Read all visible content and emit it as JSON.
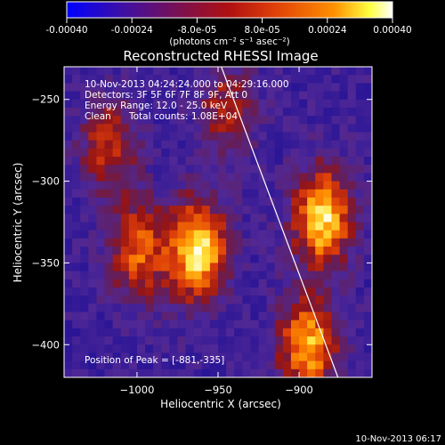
{
  "colorbar": {
    "ticks": [
      "-0.00040",
      "-0.00024",
      "-8.0e-05",
      "8.0e-05",
      "0.00024",
      "0.00040"
    ],
    "tick_values": [
      -0.0004,
      -0.00024,
      -8e-05,
      8e-05,
      0.00024,
      0.0004
    ],
    "range": [
      -0.0004,
      0.0004
    ],
    "units_label": "(photons cm⁻² s⁻¹ asec⁻²)",
    "colormap": "rainbow-like RHESSI (blue-purple negative, red-orange-yellow-white positive)",
    "colors": [
      "#0000ff",
      "#4010a0",
      "#80104a",
      "#b01010",
      "#e04008",
      "#ff9000",
      "#ffff40",
      "#ffffff"
    ]
  },
  "chart_data": {
    "type": "heatmap",
    "title": "Reconstructed RHESSI Image",
    "xlabel": "Heliocentric X (arcsec)",
    "ylabel": "Heliocentric Y (arcsec)",
    "xlim": [
      -1045,
      -855
    ],
    "ylim": [
      -420,
      -230
    ],
    "x_ticks": [
      -1000,
      -950,
      -900
    ],
    "x_tick_labels": [
      "−1000",
      "−950",
      "−900"
    ],
    "y_ticks": [
      -250,
      -300,
      -350,
      -400
    ],
    "y_tick_labels": [
      "−250",
      "−300",
      "−350",
      "−400"
    ],
    "peak": {
      "x": -881,
      "y": -335
    },
    "sources": [
      {
        "x": -965,
        "y": -340,
        "intensity": 0.0004
      },
      {
        "x": -888,
        "y": -320,
        "intensity": 0.00038
      },
      {
        "x": -897,
        "y": -398,
        "intensity": 0.00033
      },
      {
        "x": -1002,
        "y": -340,
        "intensity": 0.00025
      },
      {
        "x": -1020,
        "y": -276,
        "intensity": 0.0002
      },
      {
        "x": -947,
        "y": -255,
        "intensity": 0.00018
      }
    ],
    "limb_line": [
      [
        -948,
        -230
      ],
      [
        -876,
        -420
      ]
    ],
    "info": {
      "time_range": "10-Nov-2013 04:24:24.000 to 04:29:16.000",
      "detectors": "Detectors: 3F 5F 6F 7F 8F 9F, Att 0",
      "energy": "Energy Range: 12.0 - 25.0 keV",
      "method": "Clean",
      "counts": "Total counts: 1.08E+04",
      "peak_text": "Position of Peak = [-881,-335]"
    }
  },
  "footer": {
    "date": "10-Nov-2013 06:17"
  }
}
